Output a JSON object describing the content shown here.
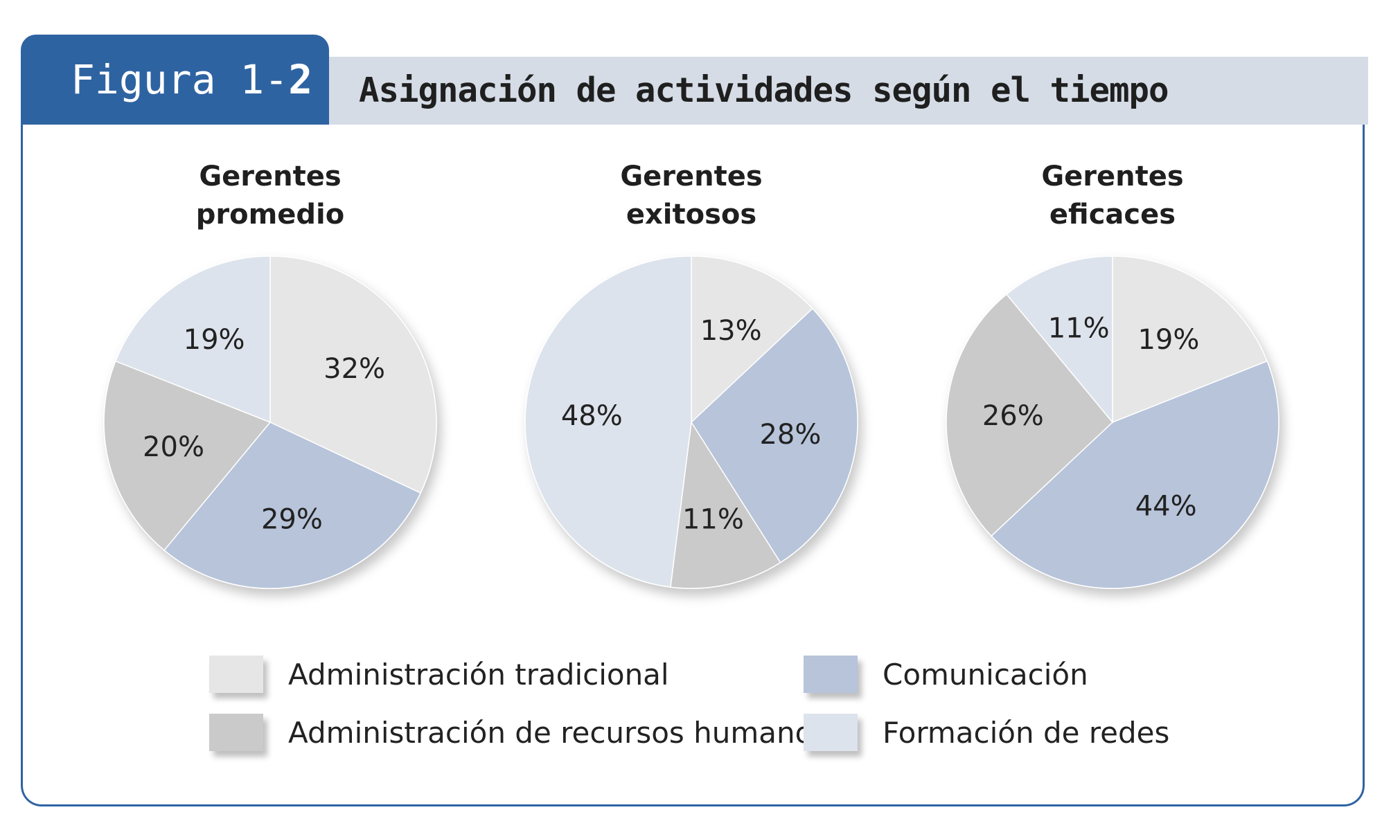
{
  "figure": {
    "label_prefix": "Figura 1-",
    "label_number": "2"
  },
  "title": "Asignación de actividades según el tiempo",
  "colors": {
    "frame": "#2e63a2",
    "title_bar": "#d5dce6",
    "Administración tradicional": "#e6e6e6",
    "Comunicación": "#b7c4da",
    "Administración de recursos humanos": "#cacaca",
    "Formación de redes": "#dde3ec"
  },
  "chart_data": [
    {
      "type": "pie",
      "title_lines": [
        "Gerentes",
        "promedio"
      ],
      "categories": [
        "Administración tradicional",
        "Comunicación",
        "Administración de recursos humanos",
        "Formación de redes"
      ],
      "values": [
        32,
        29,
        20,
        19
      ],
      "labels": [
        "32%",
        "29%",
        "20%",
        "19%"
      ]
    },
    {
      "type": "pie",
      "title_lines": [
        "Gerentes",
        "exitosos"
      ],
      "categories": [
        "Administración tradicional",
        "Comunicación",
        "Administración de recursos humanos",
        "Formación de redes"
      ],
      "values": [
        13,
        28,
        11,
        48
      ],
      "labels": [
        "13%",
        "28%",
        "11%",
        "48%"
      ]
    },
    {
      "type": "pie",
      "title_lines": [
        "Gerentes",
        "eficaces"
      ],
      "categories": [
        "Administración tradicional",
        "Comunicación",
        "Administración de recursos humanos",
        "Formación de redes"
      ],
      "values": [
        19,
        44,
        26,
        11
      ],
      "labels": [
        "19%",
        "44%",
        "26%",
        "11%"
      ]
    }
  ],
  "legend": [
    {
      "label": "Administración tradicional"
    },
    {
      "label": "Comunicación"
    },
    {
      "label": "Administración de recursos humanos"
    },
    {
      "label": "Formación de redes"
    }
  ]
}
